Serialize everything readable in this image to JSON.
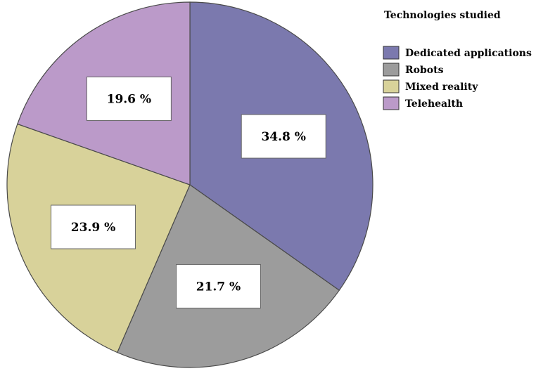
{
  "chart_data": {
    "type": "pie",
    "title": "",
    "legend_title": "Technologies studied",
    "legend_position": "top-right",
    "start_angle_deg": 0,
    "direction": "clockwise",
    "slices": [
      {
        "name": "Dedicated applications",
        "value": 34.8,
        "label": "34.8 %",
        "color": "#7b79ae"
      },
      {
        "name": "Robots",
        "value": 21.7,
        "label": "21.7 %",
        "color": "#9c9c9c"
      },
      {
        "name": "Mixed reality",
        "value": 23.9,
        "label": "23.9 %",
        "color": "#d8d29a"
      },
      {
        "name": "Telehealth",
        "value": 19.6,
        "label": "19.6 %",
        "color": "#bb9ac9"
      }
    ]
  }
}
